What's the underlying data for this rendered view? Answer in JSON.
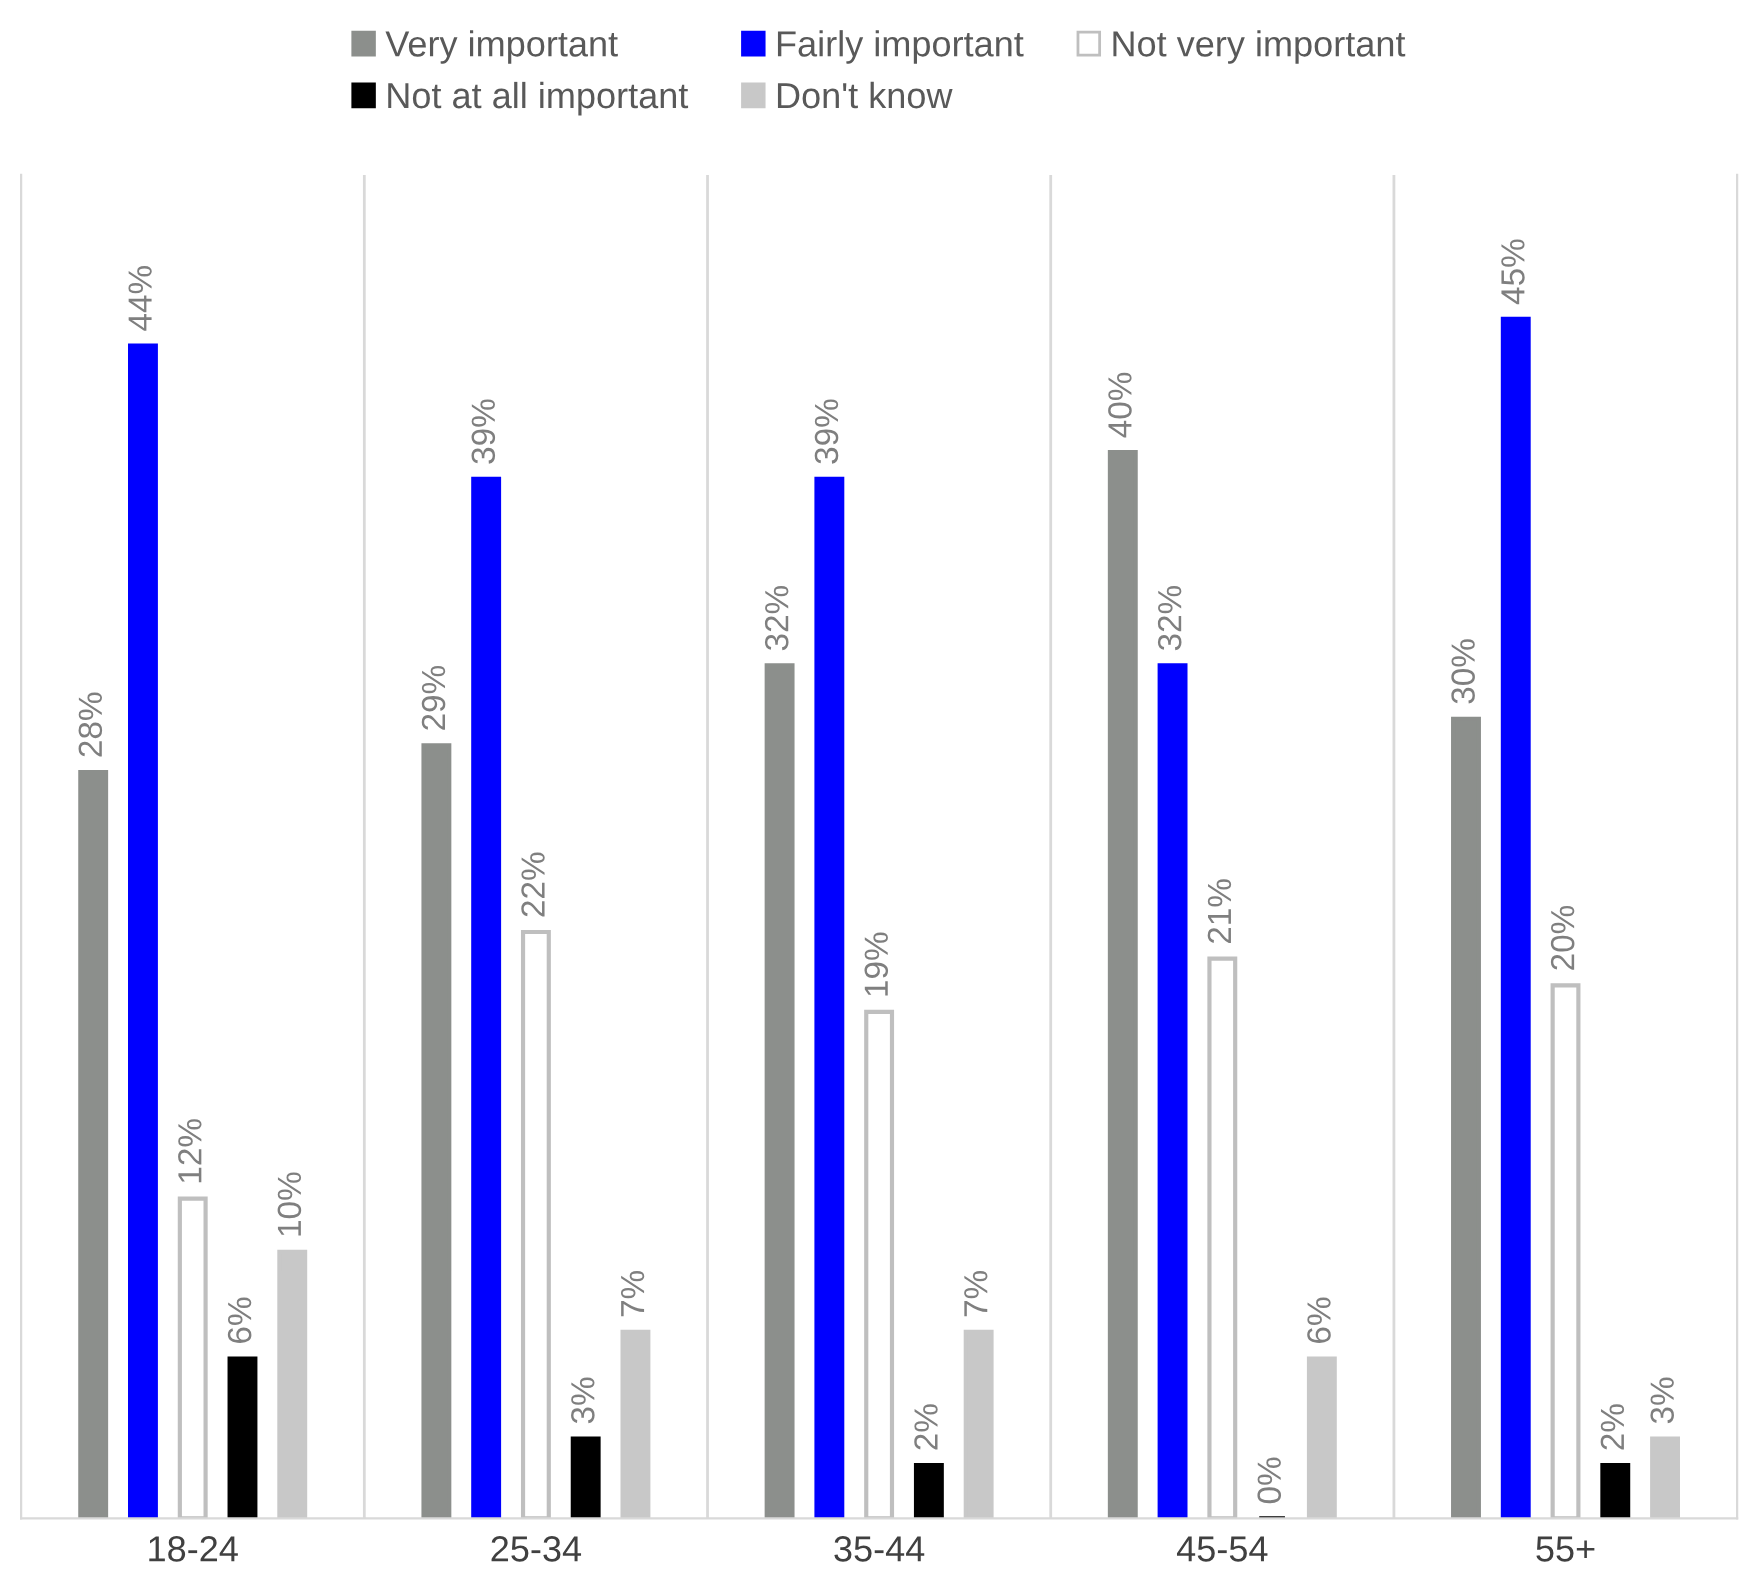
{
  "chart_data": {
    "type": "bar",
    "categories": [
      "18-24",
      "25-34",
      "35-44",
      "45-54",
      "55+"
    ],
    "series": [
      {
        "name": "Very important",
        "color": "#8c8f8c",
        "values": [
          28,
          29,
          32,
          40,
          30
        ],
        "value_labels": [
          "28%",
          "29%",
          "32%",
          "40%",
          "30%"
        ]
      },
      {
        "name": "Fairly important",
        "color": "#0000ff",
        "values": [
          44,
          39,
          39,
          32,
          45
        ],
        "value_labels": [
          "44%",
          "39%",
          "39%",
          "32%",
          "45%"
        ]
      },
      {
        "name": "Not very important",
        "color": "#ffffff",
        "values": [
          12,
          22,
          19,
          21,
          20
        ],
        "value_labels": [
          "12%",
          "22%",
          "19%",
          "21%",
          "20%"
        ]
      },
      {
        "name": "Not at all important",
        "color": "#000000",
        "values": [
          6,
          3,
          2,
          0,
          2
        ],
        "value_labels": [
          "6%",
          "3%",
          "2%",
          "0%",
          "2%"
        ]
      },
      {
        "name": "Don't know",
        "color": "#c8c8c8",
        "values": [
          10,
          7,
          7,
          6,
          3
        ],
        "value_labels": [
          "10%",
          "7%",
          "7%",
          "6%",
          "3%"
        ]
      }
    ],
    "grid": "x",
    "legend": "top",
    "tick_labels": "x"
  }
}
